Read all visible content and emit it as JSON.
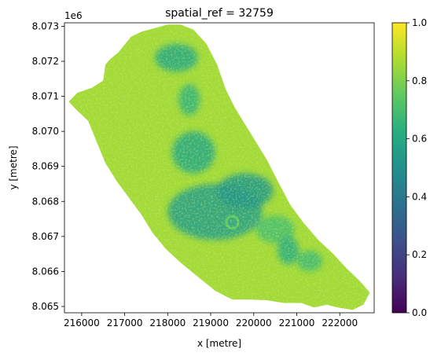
{
  "chart_data": {
    "type": "heatmap",
    "title": "spatial_ref = 32759",
    "xlabel": "x [metre]",
    "ylabel": "y [metre]",
    "y_offset_label": "1e6",
    "xlim": [
      215600,
      222800
    ],
    "ylim": [
      8.06482,
      8.0731
    ],
    "x_ticks": [
      216000,
      217000,
      218000,
      219000,
      220000,
      221000,
      222000
    ],
    "x_tick_labels": [
      "216000",
      "217000",
      "218000",
      "219000",
      "220000",
      "221000",
      "222000"
    ],
    "y_ticks": [
      8.065,
      8.066,
      8.067,
      8.068,
      8.069,
      8.07,
      8.071,
      8.072,
      8.073
    ],
    "y_tick_labels": [
      "8.065",
      "8.066",
      "8.067",
      "8.068",
      "8.069",
      "8.070",
      "8.071",
      "8.072",
      "8.073"
    ],
    "colorbar": {
      "colormap": "viridis",
      "range": [
        0,
        1
      ],
      "ticks": [
        0,
        0.2,
        0.4,
        0.6,
        0.8,
        1.0
      ],
      "tick_labels": [
        "0.0",
        "0.2",
        "0.4",
        "0.6",
        "0.8",
        "1.0"
      ]
    },
    "outline_points": [
      [
        216650,
        8.07205
      ],
      [
        216850,
        8.07225
      ],
      [
        217150,
        8.0727
      ],
      [
        217400,
        8.07285
      ],
      [
        217700,
        8.07295
      ],
      [
        218000,
        8.07305
      ],
      [
        218300,
        8.07305
      ],
      [
        218600,
        8.0729
      ],
      [
        218900,
        8.0725
      ],
      [
        219150,
        8.0719
      ],
      [
        219350,
        8.0712
      ],
      [
        219550,
        8.0707
      ],
      [
        219800,
        8.0702
      ],
      [
        220050,
        8.0697
      ],
      [
        220300,
        8.0692
      ],
      [
        220550,
        8.0686
      ],
      [
        220850,
        8.0679
      ],
      [
        221150,
        8.0674
      ],
      [
        221500,
        8.0669
      ],
      [
        221850,
        8.0665
      ],
      [
        222150,
        8.0661
      ],
      [
        222450,
        8.06575
      ],
      [
        222700,
        8.0654
      ],
      [
        222550,
        8.06505
      ],
      [
        222300,
        8.0649
      ],
      [
        221950,
        8.06497
      ],
      [
        221700,
        8.06505
      ],
      [
        221400,
        8.06497
      ],
      [
        221100,
        8.0651
      ],
      [
        220700,
        8.0651
      ],
      [
        220300,
        8.06518
      ],
      [
        219900,
        8.0652
      ],
      [
        219500,
        8.0652
      ],
      [
        219100,
        8.06545
      ],
      [
        218700,
        8.06585
      ],
      [
        218300,
        8.06625
      ],
      [
        217950,
        8.06665
      ],
      [
        217650,
        8.0671
      ],
      [
        217400,
        8.0676
      ],
      [
        217100,
        8.0681
      ],
      [
        216800,
        8.0686
      ],
      [
        216550,
        8.0691
      ],
      [
        216350,
        8.0697
      ],
      [
        216150,
        8.0703
      ],
      [
        215850,
        8.07065
      ],
      [
        215700,
        8.07085
      ],
      [
        215900,
        8.0711
      ],
      [
        216250,
        8.07125
      ],
      [
        216500,
        8.07145
      ],
      [
        216550,
        8.0719
      ]
    ],
    "low_value_regions": [
      {
        "cx": 218200,
        "cy": 8.0721,
        "rx": 500,
        "ry": 0.0004,
        "value": 0.6
      },
      {
        "cx": 218500,
        "cy": 8.0709,
        "rx": 250,
        "ry": 0.00045,
        "value": 0.65
      },
      {
        "cx": 218600,
        "cy": 8.0694,
        "rx": 500,
        "ry": 0.0006,
        "value": 0.6
      },
      {
        "cx": 219100,
        "cy": 8.0677,
        "rx": 1100,
        "ry": 0.0008,
        "value": 0.55
      },
      {
        "cx": 219800,
        "cy": 8.0683,
        "rx": 650,
        "ry": 0.0005,
        "value": 0.52
      },
      {
        "cx": 220500,
        "cy": 8.0672,
        "rx": 450,
        "ry": 0.0004,
        "value": 0.7
      },
      {
        "cx": 221300,
        "cy": 8.0663,
        "rx": 300,
        "ry": 0.0003,
        "value": 0.68
      },
      {
        "cx": 220800,
        "cy": 8.0666,
        "rx": 250,
        "ry": 0.0004,
        "value": 0.62
      }
    ],
    "crater_ring": {
      "cx": 219500,
      "cy": 8.0674,
      "r": 140,
      "value": 0.75
    }
  }
}
